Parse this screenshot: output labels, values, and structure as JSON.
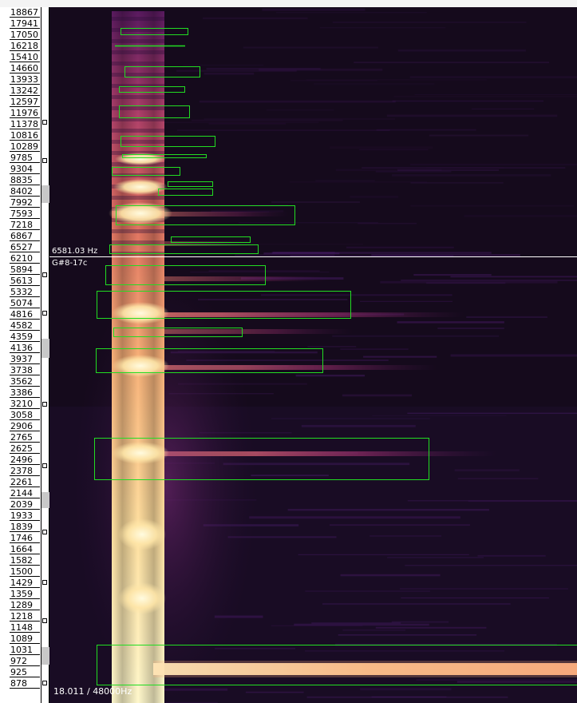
{
  "window": {
    "app": "spectrogram-analyzer"
  },
  "ruler": {
    "labels": [
      "18867",
      "17941",
      "17050",
      "16218",
      "15410",
      "14660",
      "13933",
      "13242",
      "12597",
      "11976",
      "11378",
      "10816",
      "10289",
      "9785",
      "9304",
      "8835",
      "8402",
      "7992",
      "7593",
      "7218",
      "6867",
      "6527",
      "6210",
      "5894",
      "5613",
      "5332",
      "5074",
      "4816",
      "4582",
      "4359",
      "4136",
      "3937",
      "3738",
      "3562",
      "3386",
      "3210",
      "3058",
      "2906",
      "2765",
      "2625",
      "2496",
      "2378",
      "2261",
      "2144",
      "2039",
      "1933",
      "1839",
      "1746",
      "1664",
      "1582",
      "1500",
      "1429",
      "1359",
      "1289",
      "1218",
      "1148",
      "1089",
      "1031",
      "972",
      "925",
      "878"
    ]
  },
  "cursor": {
    "frequency": "6581.03 Hz",
    "note": "G#8-17c"
  },
  "status": {
    "position": "18.011 / 48000Hz"
  },
  "colors": {
    "background": "#150a1c",
    "selection": "#22dd22",
    "cursor_line": "#ffffff",
    "bright": "#fff6c8",
    "hot": "#f6a070",
    "mid": "#a03070"
  }
}
